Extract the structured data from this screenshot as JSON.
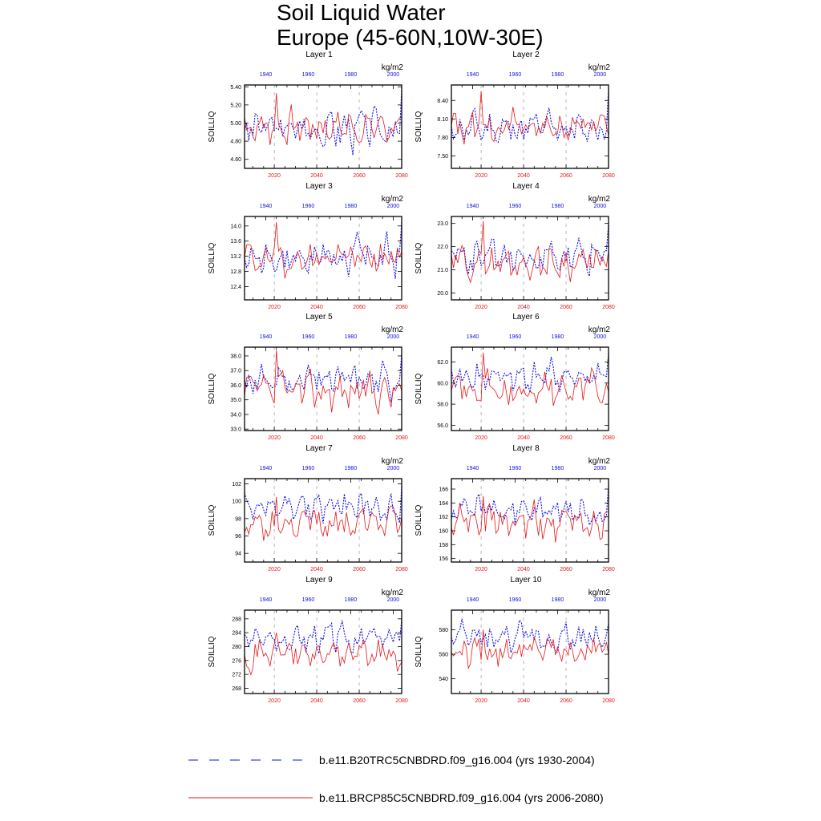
{
  "title": {
    "line1": "Soil Liquid Water",
    "line2": "Europe (45-60N,10W-30E)"
  },
  "colors": {
    "historical": "#1010e0",
    "future": "#e81818",
    "axis": "#000000",
    "refline": "#888888"
  },
  "legend": {
    "historical_label": "b.e11.B20TRC5CNBDRD.f09_g16.004 (yrs 1930-2004)",
    "future_label": "b.e11.BRCP85C5CNBDRD.f09_g16.004 (yrs 2006-2080)"
  },
  "chart_data": [
    {
      "type": "line",
      "title": "Layer 1",
      "ylabel": "SOILLIQ",
      "units": "kg/m2",
      "ylim": [
        4.5,
        5.42
      ],
      "yticks": [
        "4.60",
        "4.80",
        "5.00",
        "5.20",
        "5.40"
      ],
      "ytick_values": [
        4.6,
        4.8,
        5.0,
        5.2,
        5.4
      ],
      "xlim_bottom": [
        2006,
        2080
      ],
      "xticks_bottom": [
        2020,
        2040,
        2060,
        2080
      ],
      "xlim_top": [
        1930,
        2004
      ],
      "xticks_top": [
        1940,
        1960,
        1980,
        2000
      ],
      "series": [
        {
          "name": "historical",
          "axis": "top",
          "mean": 4.94,
          "amp": 0.17,
          "seed": 3,
          "last": 5.38
        },
        {
          "name": "future",
          "axis": "bottom",
          "mean": 4.96,
          "amp": 0.15,
          "seed": 7,
          "peak_year": 2021,
          "peak": 5.33
        }
      ]
    },
    {
      "type": "line",
      "title": "Layer 2",
      "ylabel": "SOILLIQ",
      "units": "kg/m2",
      "ylim": [
        7.3,
        8.65
      ],
      "yticks": [
        "7.50",
        "7.80",
        "8.10",
        "8.40"
      ],
      "ytick_values": [
        7.5,
        7.8,
        8.1,
        8.4
      ],
      "xlim_bottom": [
        2006,
        2080
      ],
      "xticks_bottom": [
        2020,
        2040,
        2060,
        2080
      ],
      "xlim_top": [
        1930,
        2004
      ],
      "xticks_top": [
        1940,
        1960,
        1980,
        2000
      ],
      "series": [
        {
          "name": "historical",
          "axis": "top",
          "mean": 7.95,
          "amp": 0.22,
          "seed": 11,
          "last": 8.6
        },
        {
          "name": "future",
          "axis": "bottom",
          "mean": 7.98,
          "amp": 0.2,
          "seed": 13,
          "peak_year": 2020,
          "peak": 8.55
        }
      ]
    },
    {
      "type": "line",
      "title": "Layer 3",
      "ylabel": "SOILLIQ",
      "units": "kg/m2",
      "ylim": [
        12.05,
        14.25
      ],
      "yticks": [
        "12.4",
        "12.8",
        "13.2",
        "13.6",
        "14.0"
      ],
      "ytick_values": [
        12.4,
        12.8,
        13.2,
        13.6,
        14.0
      ],
      "xlim_bottom": [
        2006,
        2080
      ],
      "xticks_bottom": [
        2020,
        2040,
        2060,
        2080
      ],
      "xlim_top": [
        1930,
        2004
      ],
      "xticks_top": [
        1940,
        1960,
        1980,
        2000
      ],
      "series": [
        {
          "name": "historical",
          "axis": "top",
          "mean": 13.2,
          "amp": 0.38,
          "seed": 17,
          "last": 14.1
        },
        {
          "name": "future",
          "axis": "bottom",
          "mean": 13.15,
          "amp": 0.35,
          "seed": 19,
          "peak_year": 2021,
          "peak": 14.1
        }
      ]
    },
    {
      "type": "line",
      "title": "Layer 4",
      "ylabel": "SOILLIQ",
      "units": "kg/m2",
      "ylim": [
        19.7,
        23.3
      ],
      "yticks": [
        "20.0",
        "21.0",
        "22.0",
        "23.0"
      ],
      "ytick_values": [
        20.0,
        21.0,
        22.0,
        23.0
      ],
      "xlim_bottom": [
        2006,
        2080
      ],
      "xticks_bottom": [
        2020,
        2040,
        2060,
        2080
      ],
      "xlim_top": [
        1930,
        2004
      ],
      "xticks_top": [
        1940,
        1960,
        1980,
        2000
      ],
      "series": [
        {
          "name": "historical",
          "axis": "top",
          "mean": 21.5,
          "amp": 0.6,
          "seed": 23,
          "last": 23.0
        },
        {
          "name": "future",
          "axis": "bottom",
          "mean": 21.3,
          "amp": 0.55,
          "seed": 29,
          "peak_year": 2021,
          "peak": 23.1
        }
      ]
    },
    {
      "type": "line",
      "title": "Layer 5",
      "ylabel": "SOILLIQ",
      "units": "kg/m2",
      "ylim": [
        32.9,
        38.6
      ],
      "yticks": [
        "33.0",
        "34.0",
        "35.0",
        "36.0",
        "37.0",
        "38.0"
      ],
      "ytick_values": [
        33,
        34,
        35,
        36,
        37,
        38
      ],
      "xlim_bottom": [
        2006,
        2080
      ],
      "xticks_bottom": [
        2020,
        2040,
        2060,
        2080
      ],
      "xlim_top": [
        1930,
        2004
      ],
      "xticks_top": [
        1940,
        1960,
        1980,
        2000
      ],
      "series": [
        {
          "name": "historical",
          "axis": "top",
          "mean": 36.3,
          "amp": 0.9,
          "seed": 31,
          "last": 38.2
        },
        {
          "name": "future",
          "axis": "bottom",
          "mean": 35.6,
          "amp": 0.95,
          "seed": 37,
          "peak_year": 2021,
          "peak": 38.4
        }
      ]
    },
    {
      "type": "line",
      "title": "Layer 6",
      "ylabel": "SOILLIQ",
      "units": "kg/m2",
      "ylim": [
        55.5,
        63.4
      ],
      "yticks": [
        "56.0",
        "58.0",
        "60.0",
        "62.0"
      ],
      "ytick_values": [
        56,
        58,
        60,
        62
      ],
      "xlim_bottom": [
        2006,
        2080
      ],
      "xticks_bottom": [
        2020,
        2040,
        2060,
        2080
      ],
      "xlim_top": [
        1930,
        2004
      ],
      "xticks_top": [
        1940,
        1960,
        1980,
        2000
      ],
      "series": [
        {
          "name": "historical",
          "axis": "top",
          "mean": 60.6,
          "amp": 1.2,
          "seed": 41,
          "last": 62.9
        },
        {
          "name": "future",
          "axis": "bottom",
          "mean": 59.3,
          "amp": 1.3,
          "seed": 43,
          "peak_year": 2021,
          "peak": 62.9
        }
      ]
    },
    {
      "type": "line",
      "title": "Layer 7",
      "ylabel": "SOILLIQ",
      "units": "kg/m2",
      "ylim": [
        93.0,
        102.6
      ],
      "yticks": [
        "94",
        "96",
        "98",
        "100",
        "102"
      ],
      "ytick_values": [
        94,
        96,
        98,
        100,
        102
      ],
      "xlim_bottom": [
        2006,
        2080
      ],
      "xticks_bottom": [
        2020,
        2040,
        2060,
        2080
      ],
      "xlim_top": [
        1930,
        2004
      ],
      "xticks_top": [
        1940,
        1960,
        1980,
        2000
      ],
      "series": [
        {
          "name": "historical",
          "axis": "top",
          "mean": 99.3,
          "amp": 1.4,
          "seed": 47,
          "last": 101.8
        },
        {
          "name": "future",
          "axis": "bottom",
          "mean": 97.5,
          "amp": 1.6,
          "seed": 53,
          "peak_year": 2021,
          "peak": 100.5
        }
      ]
    },
    {
      "type": "line",
      "title": "Layer 8",
      "ylabel": "SOILLIQ",
      "units": "kg/m2",
      "ylim": [
        155.5,
        167.5
      ],
      "yticks": [
        "156",
        "158",
        "160",
        "162",
        "164",
        "166"
      ],
      "ytick_values": [
        156,
        158,
        160,
        162,
        164,
        166
      ],
      "xlim_bottom": [
        2006,
        2080
      ],
      "xticks_bottom": [
        2020,
        2040,
        2060,
        2080
      ],
      "xlim_top": [
        1930,
        2004
      ],
      "xticks_top": [
        1940,
        1960,
        1980,
        2000
      ],
      "series": [
        {
          "name": "historical",
          "axis": "top",
          "mean": 163.0,
          "amp": 1.8,
          "seed": 59,
          "last": 166.5
        },
        {
          "name": "future",
          "axis": "bottom",
          "mean": 161.0,
          "amp": 2.0,
          "seed": 61,
          "peak_year": 2021,
          "peak": 165.0
        }
      ]
    },
    {
      "type": "line",
      "title": "Layer 9",
      "ylabel": "SOILLIQ",
      "units": "kg/m2",
      "ylim": [
        266.5,
        290.5
      ],
      "yticks": [
        "268",
        "272",
        "276",
        "280",
        "284",
        "288"
      ],
      "ytick_values": [
        268,
        272,
        276,
        280,
        284,
        288
      ],
      "xlim_bottom": [
        2006,
        2080
      ],
      "xticks_bottom": [
        2020,
        2040,
        2060,
        2080
      ],
      "xlim_top": [
        1930,
        2004
      ],
      "xticks_top": [
        1940,
        1960,
        1980,
        2000
      ],
      "series": [
        {
          "name": "historical",
          "axis": "top",
          "mean": 282.5,
          "amp": 3.3,
          "seed": 67,
          "last": 288.0
        },
        {
          "name": "future",
          "axis": "bottom",
          "mean": 278.0,
          "amp": 3.8,
          "seed": 71,
          "peak_year": 2021,
          "peak": 284.0
        }
      ]
    },
    {
      "type": "line",
      "title": "Layer 10",
      "ylabel": "SOILLIQ",
      "units": "kg/m2",
      "ylim": [
        528.0,
        596.0
      ],
      "yticks": [
        "540",
        "560",
        "580"
      ],
      "ytick_values": [
        540,
        560,
        580
      ],
      "xlim_bottom": [
        2006,
        2080
      ],
      "xticks_bottom": [
        2020,
        2040,
        2060,
        2080
      ],
      "xlim_top": [
        1930,
        2004
      ],
      "xticks_top": [
        1940,
        1960,
        1980,
        2000
      ],
      "series": [
        {
          "name": "historical",
          "axis": "top",
          "mean": 573.0,
          "amp": 9.0,
          "seed": 73,
          "last": 585.0
        },
        {
          "name": "future",
          "axis": "bottom",
          "mean": 563.0,
          "amp": 11.0,
          "seed": 79,
          "peak_year": 2021,
          "peak": 580.0
        }
      ]
    }
  ]
}
